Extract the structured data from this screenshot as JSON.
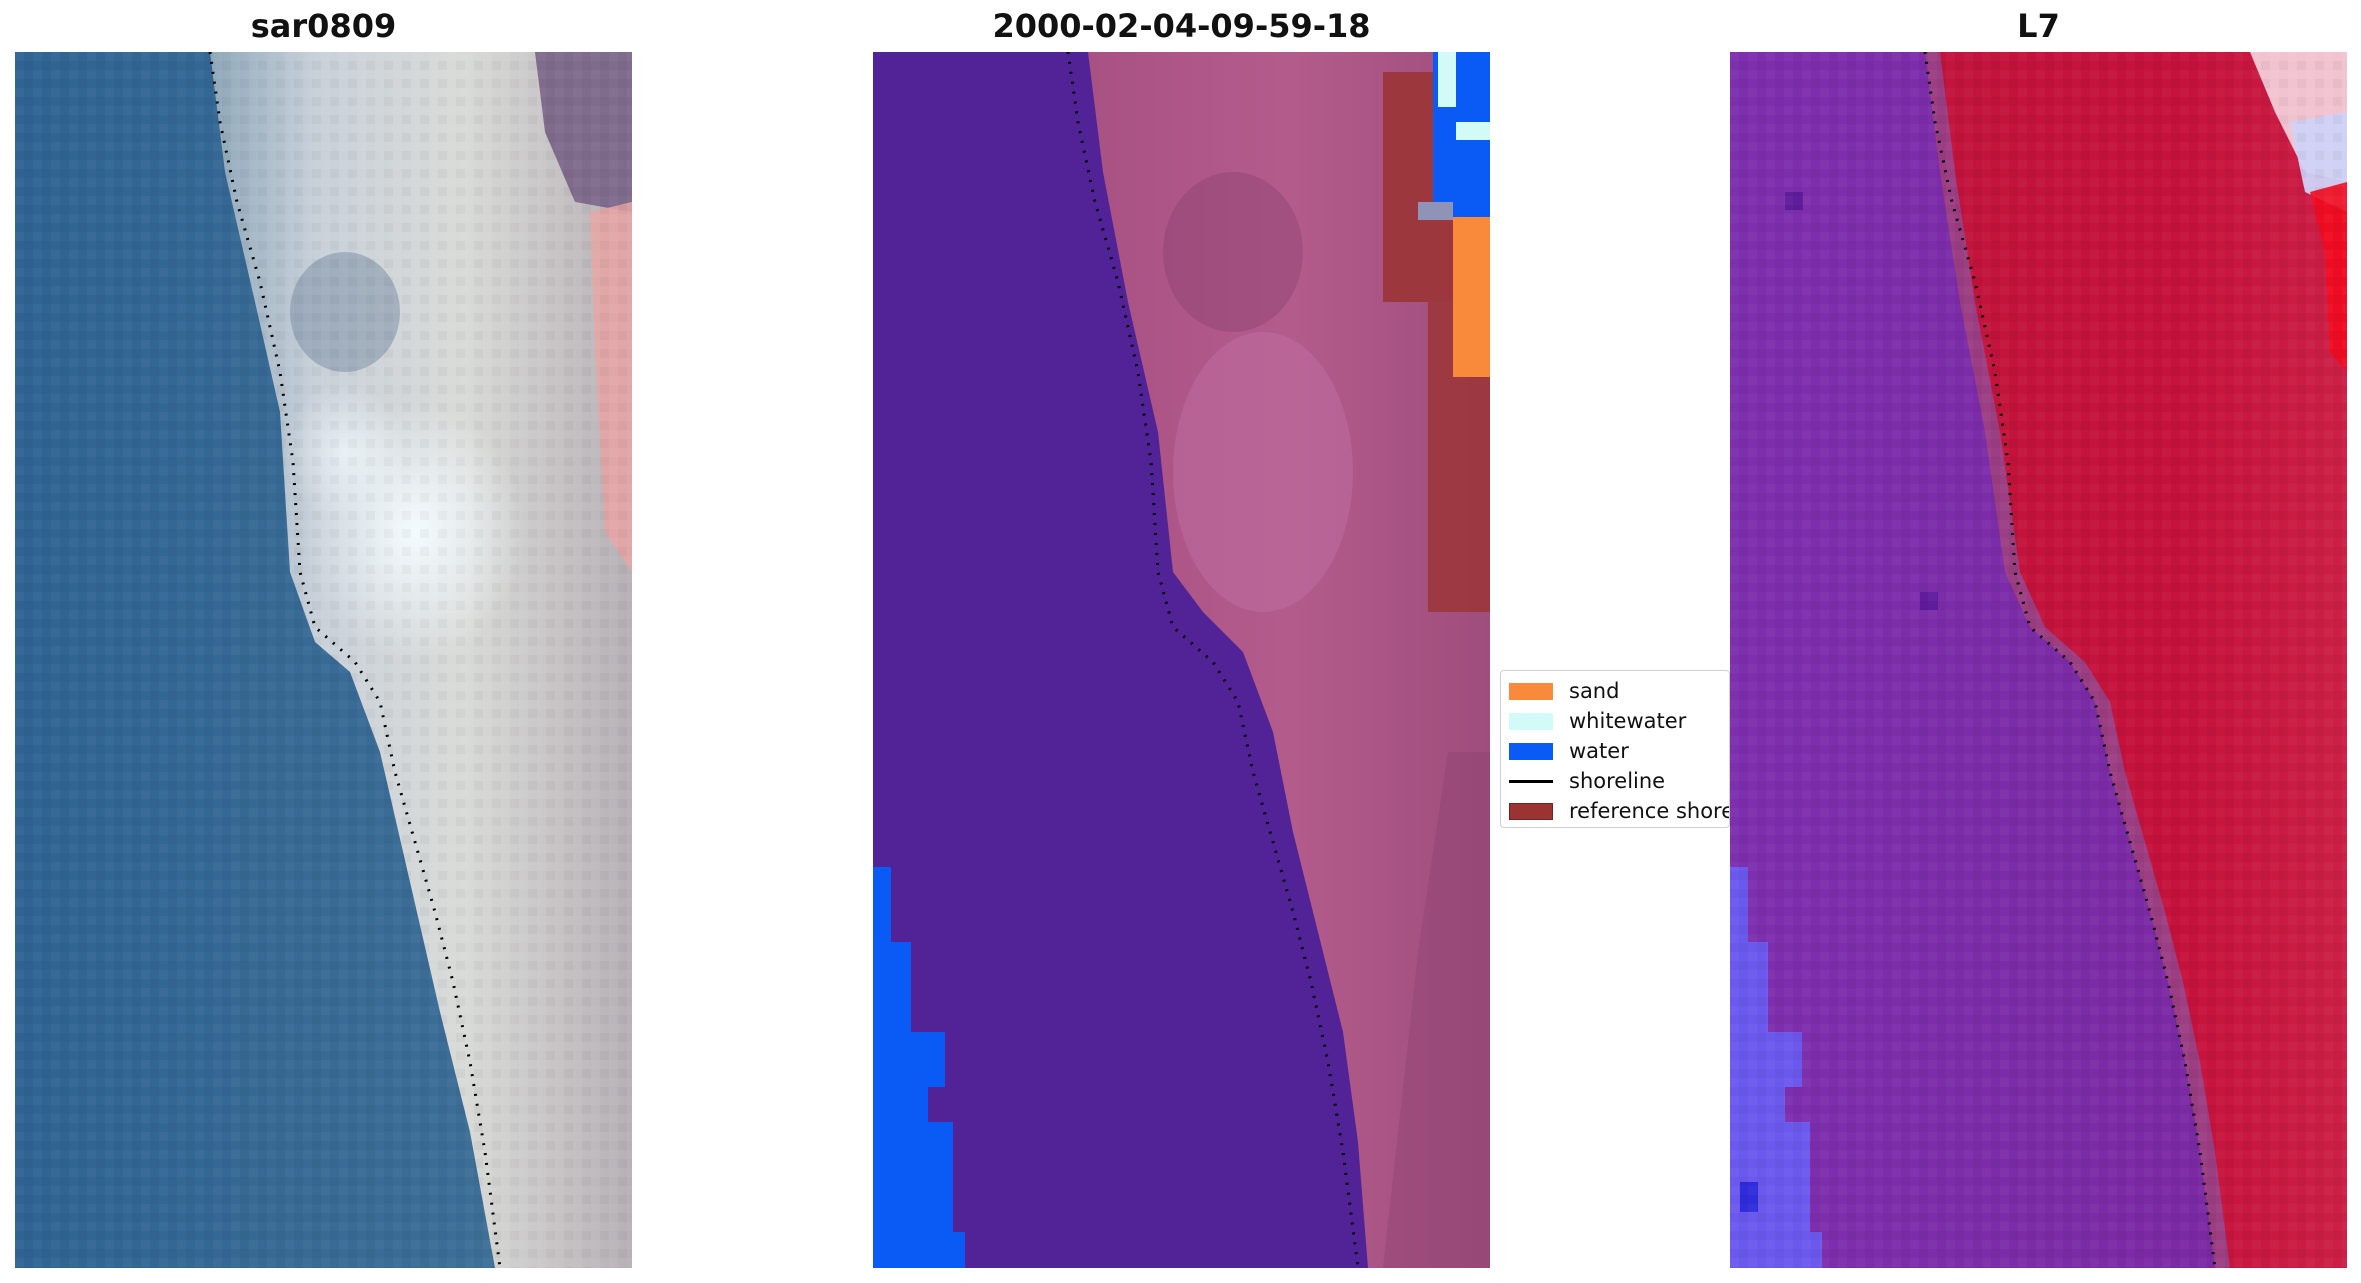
{
  "panels": [
    {
      "title": "sar0809"
    },
    {
      "title": "2000-02-04-09-59-18"
    },
    {
      "title": "L7"
    }
  ],
  "legend": {
    "items": [
      {
        "label": "sand",
        "kind": "patch",
        "color": "#F98A3C"
      },
      {
        "label": "whitewater",
        "kind": "patch",
        "color": "#D2FAF7"
      },
      {
        "label": "water",
        "kind": "patch",
        "color": "#0A5AF5"
      },
      {
        "label": "shoreline",
        "kind": "line",
        "color": "#000000"
      },
      {
        "label": "reference shoreline",
        "kind": "patch",
        "color": "#9B3333"
      }
    ]
  },
  "colors": {
    "rgb_water": "#3A6A94",
    "rgb_beach": "#BFC6CF",
    "rgb_dune": "#7E6A86",
    "class_sea": "#522297",
    "class_land": "#B0537E",
    "false_color_sea": "#7A2BA6",
    "false_color_land": "#C2143C"
  }
}
